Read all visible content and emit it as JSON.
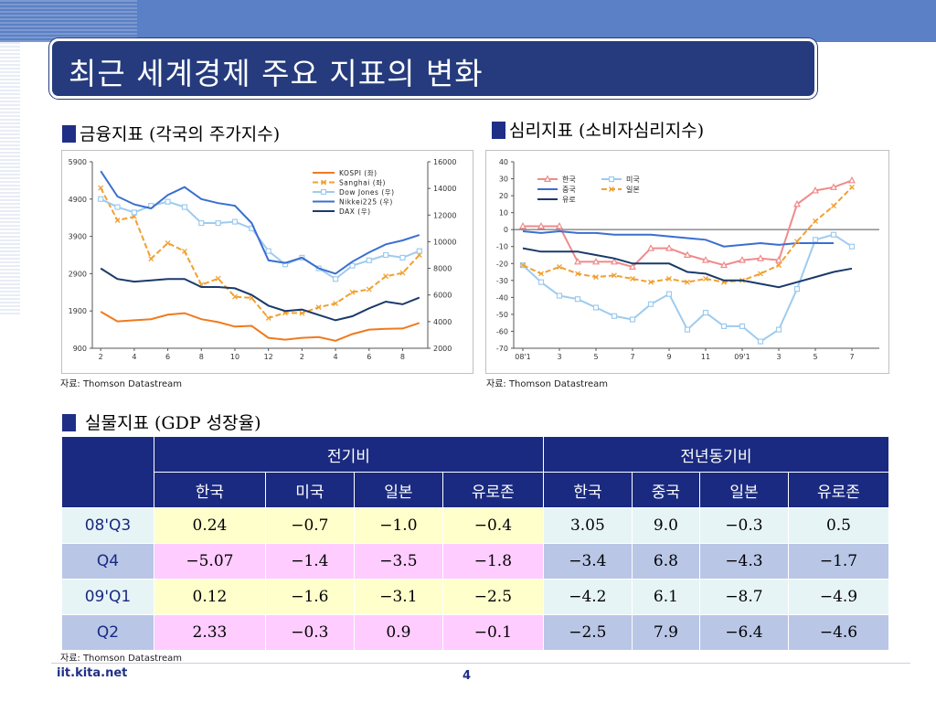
{
  "title": "최근 세계경제 주요 지표의 변화",
  "sections": {
    "financial": "금융지표 (각국의 주가지수)",
    "sentiment": "심리지표 (소비자심리지수)",
    "real": "실물지표 (GDP 성장율)"
  },
  "sources": {
    "financial": "자료: Thomson Datastream",
    "sentiment": "자료: Thomson Datastream",
    "real": "자료: Thomson Datastream"
  },
  "footer": {
    "url": "iit.kita.net",
    "page": "4"
  },
  "colors": {
    "kospi": "#f07a1e",
    "sanghai": "#f0a030",
    "dow": "#9ecbee",
    "nikkei": "#3a6fd0",
    "dax": "#1a3a6b",
    "korea": "#f08a8a",
    "usa": "#9ecbee",
    "china": "#3a6fd0",
    "japan": "#f0a030",
    "euro": "#1a3a6b"
  },
  "chart_data": [
    {
      "type": "line",
      "left_ylim": [
        900,
        5900
      ],
      "left_yticks": [
        "900",
        "1900",
        "2900",
        "3900",
        "4900",
        "5900"
      ],
      "right_ylim": [
        2000,
        16000
      ],
      "right_yticks": [
        "2000",
        "4000",
        "6000",
        "8000",
        "10000",
        "12000",
        "14000",
        "16000"
      ],
      "xticks": [
        "2",
        "4",
        "6",
        "8",
        "10",
        "12",
        "2",
        "4",
        "6",
        "8"
      ],
      "x": [
        1,
        2,
        3,
        4,
        5,
        6,
        7,
        8,
        9,
        10,
        11,
        12,
        13,
        14,
        15,
        16,
        17,
        18,
        19,
        20
      ],
      "series": [
        {
          "name": "KOSPI (좌)",
          "axis": "left",
          "values": [
            1880,
            1620,
            1650,
            1680,
            1800,
            1840,
            1680,
            1600,
            1480,
            1500,
            1180,
            1130,
            1180,
            1200,
            1100,
            1280,
            1400,
            1420,
            1430,
            1580
          ]
        },
        {
          "name": "Sanghai (좌)",
          "axis": "left",
          "values": [
            5200,
            4330,
            4430,
            3300,
            3720,
            3500,
            2600,
            2770,
            2280,
            2250,
            1710,
            1850,
            1840,
            2000,
            2100,
            2400,
            2480,
            2830,
            2920,
            3400
          ]
        },
        {
          "name": "Dow Jones (우)",
          "axis": "right",
          "values": [
            13200,
            12600,
            12200,
            12700,
            13000,
            12600,
            11400,
            11400,
            11500,
            11000,
            9300,
            8300,
            8800,
            8000,
            7200,
            8200,
            8600,
            9000,
            8800,
            9300
          ]
        },
        {
          "name": "Nikkei225 (우)",
          "axis": "right",
          "values": [
            15300,
            13400,
            12800,
            12500,
            13500,
            14100,
            13200,
            12900,
            12700,
            11400,
            8600,
            8400,
            8800,
            8000,
            7600,
            8500,
            9200,
            9800,
            10100,
            10500
          ]
        },
        {
          "name": "DAX (우)",
          "axis": "right",
          "values": [
            8000,
            7200,
            7000,
            7100,
            7200,
            7200,
            6600,
            6600,
            6500,
            6000,
            5200,
            4800,
            4900,
            4500,
            4100,
            4400,
            5000,
            5500,
            5300,
            5800
          ]
        }
      ]
    },
    {
      "type": "line",
      "ylim": [
        -70,
        40
      ],
      "yticks": [
        "-70",
        "-60",
        "-50",
        "-40",
        "-30",
        "-20",
        "-10",
        "0",
        "10",
        "20",
        "30",
        "40"
      ],
      "xticks": [
        "08'1",
        "3",
        "5",
        "7",
        "9",
        "11",
        "09'1",
        "3",
        "5",
        "7"
      ],
      "x": [
        1,
        2,
        3,
        4,
        5,
        6,
        7,
        8,
        9,
        10,
        11,
        12,
        13,
        14,
        15,
        16,
        17,
        18,
        19,
        20
      ],
      "series": [
        {
          "name": "한국",
          "values": [
            2,
            2,
            2,
            -19,
            -19,
            -19,
            -22,
            -11,
            -11,
            -15,
            -18,
            -21,
            -18,
            -17,
            -18,
            15,
            23,
            25,
            29,
            null
          ]
        },
        {
          "name": "미국",
          "values": [
            -21,
            -31,
            -39,
            -41,
            -46,
            -51,
            -53,
            -44,
            -38,
            -59,
            -49,
            -57,
            -57,
            -66,
            -59,
            -35,
            -6,
            -3,
            -10,
            null
          ]
        },
        {
          "name": "중국",
          "values": [
            -1,
            -2,
            -1,
            -2,
            -2,
            -3,
            -3,
            -3,
            -4,
            -5,
            -6,
            -10,
            -9,
            -8,
            -9,
            -8,
            -8,
            -8,
            null,
            null
          ]
        },
        {
          "name": "일본",
          "values": [
            -21,
            -26,
            -22,
            -26,
            -28,
            -27,
            -29,
            -31,
            -29,
            -31,
            -29,
            -31,
            -30,
            -26,
            -21,
            -7,
            5,
            14,
            25,
            null
          ]
        },
        {
          "name": "유로",
          "values": [
            -11,
            -13,
            -13,
            -13,
            -15,
            -17,
            -20,
            -20,
            -20,
            -25,
            -26,
            -30,
            -30,
            -32,
            -34,
            -31,
            -28,
            -25,
            -23,
            null
          ]
        }
      ]
    },
    {
      "type": "table",
      "group_headers": [
        "전기비",
        "전년동기비"
      ],
      "columns": [
        "한국",
        "미국",
        "일본",
        "유로존",
        "한국",
        "중국",
        "일본",
        "유로존"
      ],
      "rows": [
        {
          "label": "08'Q3",
          "values": [
            "0.24",
            "−0.7",
            "−1.0",
            "−0.4",
            "3.05",
            "9.0",
            "−0.3",
            "0.5"
          ]
        },
        {
          "label": "Q4",
          "values": [
            "−5.07",
            "−1.4",
            "−3.5",
            "−1.8",
            "−3.4",
            "6.8",
            "−4.3",
            "−1.7"
          ]
        },
        {
          "label": "09'Q1",
          "values": [
            "0.12",
            "−1.6",
            "−3.1",
            "−2.5",
            "−4.2",
            "6.1",
            "−8.7",
            "−4.9"
          ]
        },
        {
          "label": "Q2",
          "values": [
            "2.33",
            "−0.3",
            "0.9",
            "−0.1",
            "−2.5",
            "7.9",
            "−6.4",
            "−4.6"
          ]
        }
      ]
    }
  ]
}
